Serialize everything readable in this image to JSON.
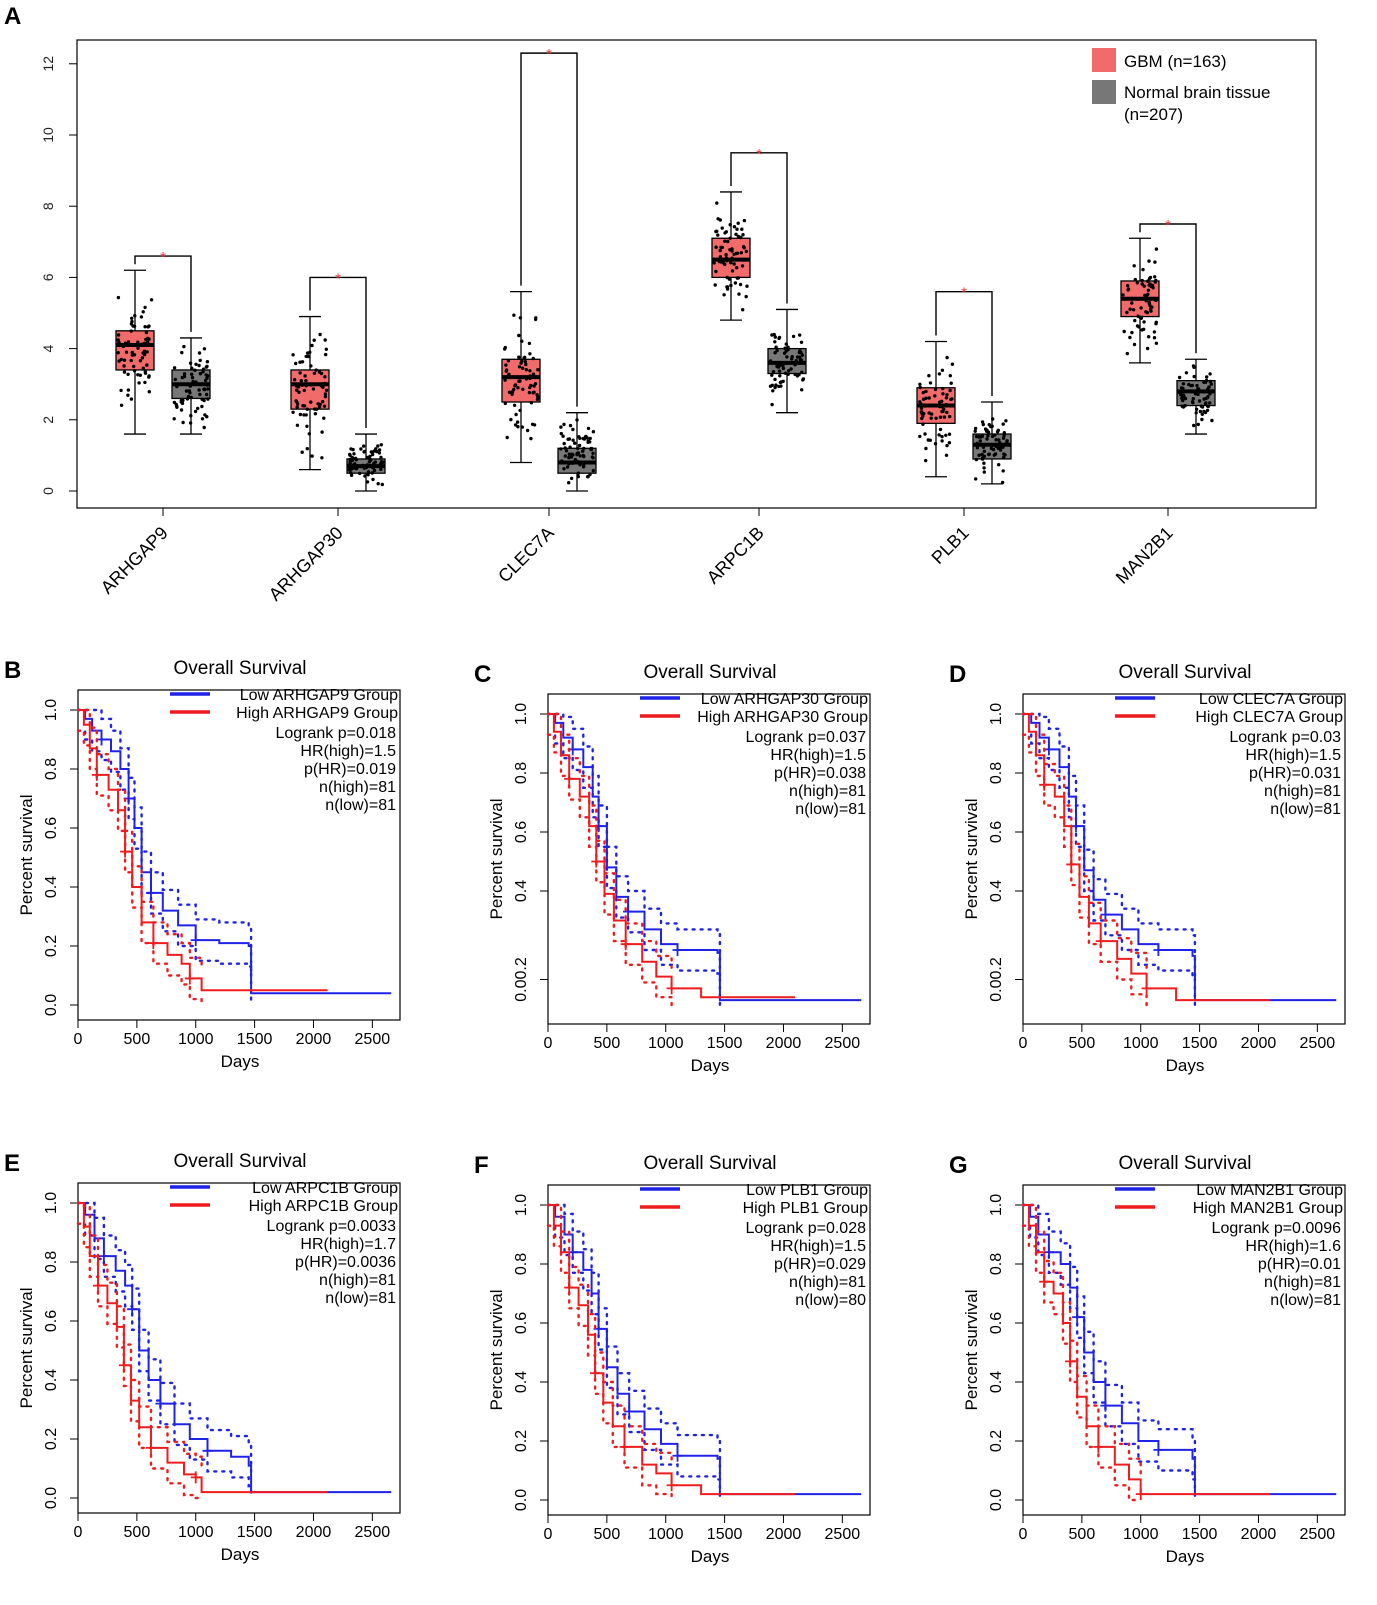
{
  "colors": {
    "gbm": "#f26b6b",
    "normal": "#777777",
    "low_line": "#1f23e8",
    "high_line": "#ee1c1c",
    "sig": "#e8383d"
  },
  "panel_a": {
    "letter": "A",
    "chart_data": {
      "type": "box",
      "categories": [
        "ARHGAP9",
        "ARHGAP30",
        "CLEC7A",
        "ARPC1B",
        "PLB1",
        "MAN2B1"
      ],
      "ylim": [
        -0.4,
        13.2
      ],
      "yticks": [
        0,
        2,
        4,
        6,
        8,
        10,
        12
      ],
      "legend": [
        {
          "name": "GBM (n=163)",
          "color": "#f26b6b"
        },
        {
          "name": "Normal brain tissue",
          "name2": "(n=207)",
          "color": "#777777"
        }
      ],
      "significance_mark": "*",
      "series": [
        {
          "name": "GBM",
          "boxes": [
            {
              "low": 1.6,
              "q1": 3.4,
              "median": 4.1,
              "q3": 4.5,
              "high": 6.2
            },
            {
              "low": 0.6,
              "q1": 2.3,
              "median": 3.0,
              "q3": 3.4,
              "high": 4.9
            },
            {
              "low": 0.8,
              "q1": 2.5,
              "median": 3.2,
              "q3": 3.7,
              "high": 5.6
            },
            {
              "low": 4.8,
              "q1": 6.0,
              "median": 6.5,
              "q3": 7.1,
              "high": 8.4
            },
            {
              "low": 0.4,
              "q1": 1.9,
              "median": 2.4,
              "q3": 2.9,
              "high": 4.2
            },
            {
              "low": 3.6,
              "q1": 4.9,
              "median": 5.4,
              "q3": 5.9,
              "high": 7.1
            }
          ]
        },
        {
          "name": "Normal brain tissue",
          "boxes": [
            {
              "low": 1.6,
              "q1": 2.6,
              "median": 3.0,
              "q3": 3.4,
              "high": 4.3
            },
            {
              "low": 0.0,
              "q1": 0.5,
              "median": 0.7,
              "q3": 0.9,
              "high": 1.6
            },
            {
              "low": 0.0,
              "q1": 0.5,
              "median": 0.8,
              "q3": 1.2,
              "high": 2.2
            },
            {
              "low": 2.2,
              "q1": 3.3,
              "median": 3.6,
              "q3": 4.0,
              "high": 5.1
            },
            {
              "low": 0.2,
              "q1": 0.9,
              "median": 1.3,
              "q3": 1.6,
              "high": 2.5
            },
            {
              "low": 1.6,
              "q1": 2.4,
              "median": 2.8,
              "q3": 3.1,
              "high": 3.7
            }
          ]
        }
      ],
      "significance_top": [
        6.6,
        6.0,
        12.3,
        9.5,
        5.6,
        7.5
      ]
    }
  },
  "km_panels": [
    {
      "letter": "B",
      "gene": "ARHGAP9",
      "title": "Overall Survival",
      "legend_low": "Low ARHGAP9 Group",
      "legend_high": "High ARHGAP9 Group",
      "stats": [
        "Logrank p=0.018",
        "HR(high)=1.5",
        "p(HR)=0.019",
        "n(high)=81",
        "n(low)=81"
      ],
      "xlabel": "Days",
      "ylabel": "Percent survival",
      "xticks": [
        "0",
        "500",
        "1000",
        "1500",
        "2000",
        "2500"
      ],
      "yticks": [
        "0.0",
        "0.2",
        "0.4",
        "0.6",
        "0.8",
        "1.0"
      ],
      "chart_data": {
        "type": "line",
        "xlim": [
          0,
          2650
        ],
        "ylim": [
          0,
          1.05
        ],
        "low": [
          [
            0,
            1
          ],
          [
            60,
            0.97
          ],
          [
            120,
            0.93
          ],
          [
            200,
            0.9
          ],
          [
            280,
            0.86
          ],
          [
            360,
            0.8
          ],
          [
            430,
            0.7
          ],
          [
            480,
            0.6
          ],
          [
            540,
            0.45
          ],
          [
            620,
            0.38
          ],
          [
            720,
            0.32
          ],
          [
            850,
            0.27
          ],
          [
            1000,
            0.22
          ],
          [
            1200,
            0.21
          ],
          [
            1450,
            0.2
          ],
          [
            1470,
            0.04
          ],
          [
            2660,
            0.04
          ]
        ],
        "high": [
          [
            0,
            1
          ],
          [
            50,
            0.95
          ],
          [
            100,
            0.87
          ],
          [
            160,
            0.78
          ],
          [
            260,
            0.73
          ],
          [
            340,
            0.66
          ],
          [
            400,
            0.52
          ],
          [
            460,
            0.4
          ],
          [
            540,
            0.28
          ],
          [
            640,
            0.21
          ],
          [
            760,
            0.17
          ],
          [
            880,
            0.14
          ],
          [
            950,
            0.09
          ],
          [
            1050,
            0.05
          ],
          [
            1300,
            0.05
          ],
          [
            2120,
            0.05
          ]
        ]
      }
    },
    {
      "letter": "C",
      "gene": "ARHGAP30",
      "title": "Overall Survival",
      "legend_low": "Low ARHGAP30 Group",
      "legend_high": "High ARHGAP30 Group",
      "stats": [
        "Logrank p=0.037",
        "HR(high)=1.5",
        "p(HR)=0.038",
        "n(high)=81",
        "n(low)=81"
      ],
      "xlabel": "Days",
      "ylabel": "Percent survival",
      "xticks": [
        "0",
        "500",
        "1000",
        "1500",
        "2000",
        "2500"
      ],
      "yticks": [
        "0.00.2",
        "0.4",
        "0.6",
        "0.8",
        "1.0"
      ],
      "chart_data": {
        "type": "line",
        "xlim": [
          0,
          2650
        ],
        "ylim": [
          0,
          1.05
        ],
        "low": [
          [
            0,
            1
          ],
          [
            60,
            0.97
          ],
          [
            130,
            0.92
          ],
          [
            210,
            0.88
          ],
          [
            300,
            0.82
          ],
          [
            380,
            0.72
          ],
          [
            430,
            0.62
          ],
          [
            500,
            0.48
          ],
          [
            580,
            0.38
          ],
          [
            680,
            0.33
          ],
          [
            820,
            0.27
          ],
          [
            960,
            0.22
          ],
          [
            1100,
            0.2
          ],
          [
            1440,
            0.19
          ],
          [
            1460,
            0.03
          ],
          [
            2660,
            0.03
          ]
        ],
        "high": [
          [
            0,
            1
          ],
          [
            50,
            0.94
          ],
          [
            110,
            0.86
          ],
          [
            180,
            0.78
          ],
          [
            270,
            0.72
          ],
          [
            350,
            0.62
          ],
          [
            410,
            0.5
          ],
          [
            480,
            0.39
          ],
          [
            560,
            0.3
          ],
          [
            660,
            0.22
          ],
          [
            800,
            0.16
          ],
          [
            920,
            0.11
          ],
          [
            1050,
            0.07
          ],
          [
            1300,
            0.04
          ],
          [
            2100,
            0.04
          ]
        ]
      }
    },
    {
      "letter": "D",
      "gene": "CLEC7A",
      "title": "Overall Survival",
      "legend_low": "Low CLEC7A Group",
      "legend_high": "High CLEC7A Group",
      "stats": [
        "Logrank p=0.03",
        "HR(high)=1.5",
        "p(HR)=0.031",
        "n(high)=81",
        "n(low)=81"
      ],
      "xlabel": "Days",
      "ylabel": "Percent survival",
      "xticks": [
        "0",
        "500",
        "1000",
        "1500",
        "2000",
        "2500"
      ],
      "yticks": [
        "0.00.2",
        "0.4",
        "0.6",
        "0.8",
        "1.0"
      ],
      "chart_data": {
        "type": "line",
        "xlim": [
          0,
          2650
        ],
        "ylim": [
          0,
          1.05
        ],
        "low": [
          [
            0,
            1
          ],
          [
            70,
            0.97
          ],
          [
            140,
            0.92
          ],
          [
            220,
            0.88
          ],
          [
            310,
            0.82
          ],
          [
            390,
            0.72
          ],
          [
            450,
            0.62
          ],
          [
            520,
            0.47
          ],
          [
            600,
            0.37
          ],
          [
            700,
            0.32
          ],
          [
            840,
            0.27
          ],
          [
            980,
            0.22
          ],
          [
            1150,
            0.2
          ],
          [
            1440,
            0.18
          ],
          [
            1460,
            0.03
          ],
          [
            2660,
            0.03
          ]
        ],
        "high": [
          [
            0,
            1
          ],
          [
            50,
            0.94
          ],
          [
            110,
            0.86
          ],
          [
            180,
            0.76
          ],
          [
            270,
            0.72
          ],
          [
            350,
            0.62
          ],
          [
            410,
            0.49
          ],
          [
            480,
            0.38
          ],
          [
            560,
            0.29
          ],
          [
            660,
            0.23
          ],
          [
            800,
            0.17
          ],
          [
            920,
            0.12
          ],
          [
            1050,
            0.07
          ],
          [
            1300,
            0.03
          ],
          [
            2100,
            0.03
          ]
        ]
      }
    },
    {
      "letter": "E",
      "gene": "ARPC1B",
      "title": "Overall Survival",
      "legend_low": "Low ARPC1B Group",
      "legend_high": "High ARPC1B Group",
      "stats": [
        "Logrank p=0.0033",
        "HR(high)=1.7",
        "p(HR)=0.0036",
        "n(high)=81",
        "n(low)=81"
      ],
      "xlabel": "Days",
      "ylabel": "Percent survival",
      "xticks": [
        "0",
        "500",
        "1000",
        "1500",
        "2000",
        "2500"
      ],
      "yticks": [
        "0.0",
        "0.2",
        "0.4",
        "0.6",
        "0.8",
        "1.0"
      ],
      "chart_data": {
        "type": "line",
        "xlim": [
          0,
          2650
        ],
        "ylim": [
          0,
          1.05
        ],
        "low": [
          [
            0,
            1
          ],
          [
            60,
            0.96
          ],
          [
            140,
            0.88
          ],
          [
            220,
            0.82
          ],
          [
            320,
            0.77
          ],
          [
            400,
            0.72
          ],
          [
            460,
            0.64
          ],
          [
            520,
            0.5
          ],
          [
            600,
            0.4
          ],
          [
            700,
            0.32
          ],
          [
            820,
            0.25
          ],
          [
            950,
            0.2
          ],
          [
            1100,
            0.16
          ],
          [
            1300,
            0.14
          ],
          [
            1450,
            0.11
          ],
          [
            1470,
            0.02
          ],
          [
            2660,
            0.02
          ]
        ],
        "high": [
          [
            0,
            1
          ],
          [
            50,
            0.92
          ],
          [
            100,
            0.82
          ],
          [
            170,
            0.72
          ],
          [
            250,
            0.66
          ],
          [
            330,
            0.58
          ],
          [
            390,
            0.45
          ],
          [
            450,
            0.33
          ],
          [
            520,
            0.24
          ],
          [
            620,
            0.17
          ],
          [
            760,
            0.12
          ],
          [
            900,
            0.08
          ],
          [
            1000,
            0.07
          ],
          [
            1050,
            0.02
          ],
          [
            2120,
            0.02
          ]
        ]
      }
    },
    {
      "letter": "F",
      "gene": "PLB1",
      "title": "Overall Survival",
      "legend_low": "Low PLB1 Group",
      "legend_high": "High PLB1 Group",
      "stats": [
        "Logrank p=0.028",
        "HR(high)=1.5",
        "p(HR)=0.029",
        "n(high)=81",
        "n(low)=80"
      ],
      "xlabel": "Days",
      "ylabel": "Percent survival",
      "xticks": [
        "0",
        "500",
        "1000",
        "1500",
        "2000",
        "2500"
      ],
      "yticks": [
        "0.0",
        "0.2",
        "0.4",
        "0.6",
        "0.8",
        "1.0"
      ],
      "chart_data": {
        "type": "line",
        "xlim": [
          0,
          2650
        ],
        "ylim": [
          0,
          1.05
        ],
        "low": [
          [
            0,
            1
          ],
          [
            60,
            0.96
          ],
          [
            140,
            0.9
          ],
          [
            210,
            0.84
          ],
          [
            300,
            0.78
          ],
          [
            370,
            0.7
          ],
          [
            430,
            0.58
          ],
          [
            500,
            0.45
          ],
          [
            590,
            0.36
          ],
          [
            690,
            0.3
          ],
          [
            820,
            0.24
          ],
          [
            960,
            0.19
          ],
          [
            1100,
            0.15
          ],
          [
            1440,
            0.14
          ],
          [
            1460,
            0.02
          ],
          [
            2660,
            0.02
          ]
        ],
        "high": [
          [
            0,
            1
          ],
          [
            50,
            0.93
          ],
          [
            110,
            0.84
          ],
          [
            180,
            0.72
          ],
          [
            260,
            0.66
          ],
          [
            340,
            0.56
          ],
          [
            400,
            0.43
          ],
          [
            470,
            0.33
          ],
          [
            550,
            0.25
          ],
          [
            650,
            0.18
          ],
          [
            800,
            0.12
          ],
          [
            920,
            0.09
          ],
          [
            1050,
            0.05
          ],
          [
            1300,
            0.02
          ],
          [
            2100,
            0.02
          ]
        ]
      }
    },
    {
      "letter": "G",
      "gene": "MAN2B1",
      "title": "Overall Survival",
      "legend_low": "Low MAN2B1 Group",
      "legend_high": "High MAN2B1 Group",
      "stats": [
        "Logrank p=0.0096",
        "HR(high)=1.6",
        "p(HR)=0.01",
        "n(high)=81",
        "n(low)=81"
      ],
      "xlabel": "Days",
      "ylabel": "Percent survival",
      "xticks": [
        "0",
        "500",
        "1000",
        "1500",
        "2000",
        "2500"
      ],
      "yticks": [
        "0.0",
        "0.2",
        "0.4",
        "0.6",
        "0.8",
        "1.0"
      ],
      "chart_data": {
        "type": "line",
        "xlim": [
          0,
          2650
        ],
        "ylim": [
          0,
          1.05
        ],
        "low": [
          [
            0,
            1
          ],
          [
            60,
            0.96
          ],
          [
            130,
            0.9
          ],
          [
            220,
            0.84
          ],
          [
            320,
            0.8
          ],
          [
            400,
            0.72
          ],
          [
            460,
            0.62
          ],
          [
            520,
            0.5
          ],
          [
            600,
            0.4
          ],
          [
            700,
            0.32
          ],
          [
            840,
            0.26
          ],
          [
            980,
            0.2
          ],
          [
            1150,
            0.17
          ],
          [
            1440,
            0.14
          ],
          [
            1460,
            0.02
          ],
          [
            2660,
            0.02
          ]
        ],
        "high": [
          [
            0,
            1
          ],
          [
            50,
            0.93
          ],
          [
            110,
            0.84
          ],
          [
            180,
            0.74
          ],
          [
            260,
            0.7
          ],
          [
            340,
            0.6
          ],
          [
            400,
            0.47
          ],
          [
            460,
            0.35
          ],
          [
            540,
            0.25
          ],
          [
            640,
            0.18
          ],
          [
            780,
            0.12
          ],
          [
            900,
            0.07
          ],
          [
            1000,
            0.02
          ],
          [
            2100,
            0.02
          ]
        ]
      }
    }
  ]
}
